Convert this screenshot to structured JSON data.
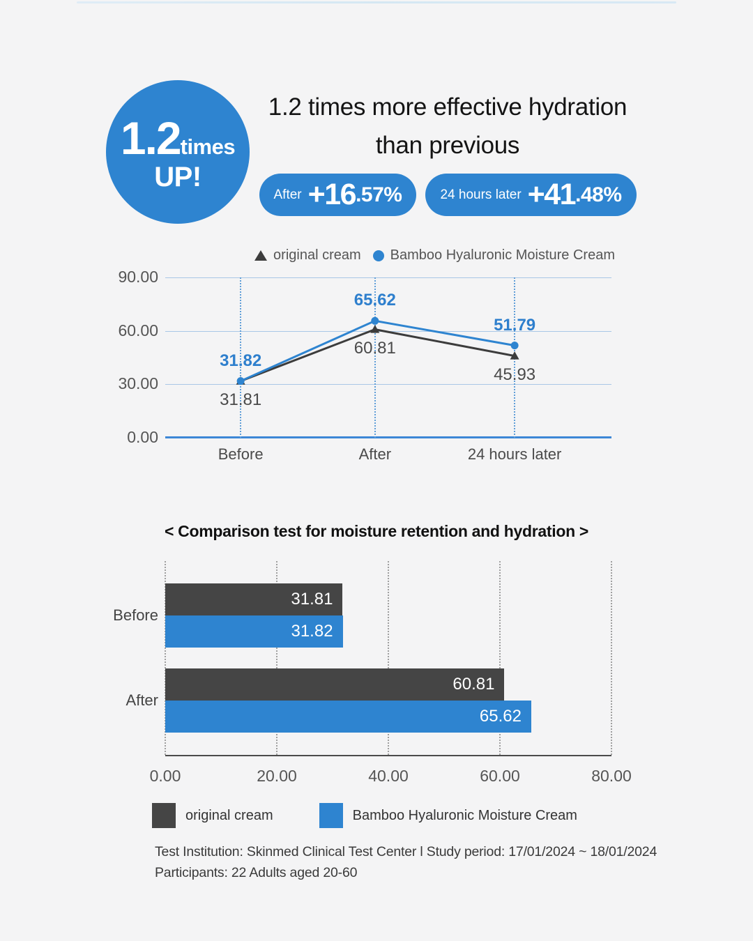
{
  "colors": {
    "accent_blue": "#2e84d0",
    "dark_gray": "#454545",
    "grid_blue": "#a9c7e6",
    "zero_axis_blue": "#3d87d6",
    "dotted_blue": "#5f9ed8",
    "grid_gray": "#9f9f9f",
    "background": "#f4f4f5"
  },
  "header": {
    "badge": {
      "value": "1.2",
      "unit": "times",
      "suffix": "UP!"
    },
    "title_line1": "1.2 times more effective hydration",
    "title_line2": "than previous",
    "pills": [
      {
        "prefix": "After",
        "value_big": "+16",
        "value_small": ".57%"
      },
      {
        "prefix": "24 hours later",
        "value_big": "+41",
        "value_small": ".48%"
      }
    ]
  },
  "chart_data": [
    {
      "type": "line",
      "categories": [
        "Before",
        "After",
        "24 hours later"
      ],
      "series": [
        {
          "name": "original cream",
          "marker": "triangle",
          "color": "#3c3c3c",
          "values": [
            31.81,
            60.81,
            45.93
          ],
          "label_position": "below"
        },
        {
          "name": "Bamboo Hyaluronic Moisture Cream",
          "marker": "circle",
          "color": "#2e84d0",
          "values": [
            31.82,
            65.62,
            51.79
          ],
          "label_position": "above"
        }
      ],
      "ylim": [
        0,
        90
      ],
      "yticks": [
        90,
        60,
        30,
        0
      ],
      "ytick_labels": [
        "90.00",
        "60.00",
        "30.00",
        "0.00"
      ],
      "category_x_percent": [
        16.9,
        47.0,
        78.3
      ],
      "legend_position": "top-right",
      "grid": "horizontal blue lines; vertical dotted blue lines at categories; solid blue zero axis"
    },
    {
      "type": "bar",
      "orientation": "horizontal",
      "title": "< Comparison test for moisture retention and hydration >",
      "categories": [
        "Before",
        "After"
      ],
      "series": [
        {
          "name": "original cream",
          "color": "#454545",
          "values": [
            31.81,
            60.81
          ]
        },
        {
          "name": "Bamboo Hyaluronic Moisture Cream",
          "color": "#2e84d0",
          "values": [
            31.82,
            65.62
          ]
        }
      ],
      "xlim": [
        0,
        80
      ],
      "xticks": [
        0,
        20,
        40,
        60,
        80
      ],
      "xtick_labels": [
        "0.00",
        "20.00",
        "40.00",
        "60.00",
        "80.00"
      ],
      "legend_position": "bottom-left",
      "grid": "vertical dotted gray lines at xticks"
    }
  ],
  "footer": {
    "line1": "Test Institution: Skinmed Clinical Test Center l Study period: 17/01/2024 ~ 18/01/2024",
    "line2": "Participants: 22 Adults aged 20-60"
  }
}
